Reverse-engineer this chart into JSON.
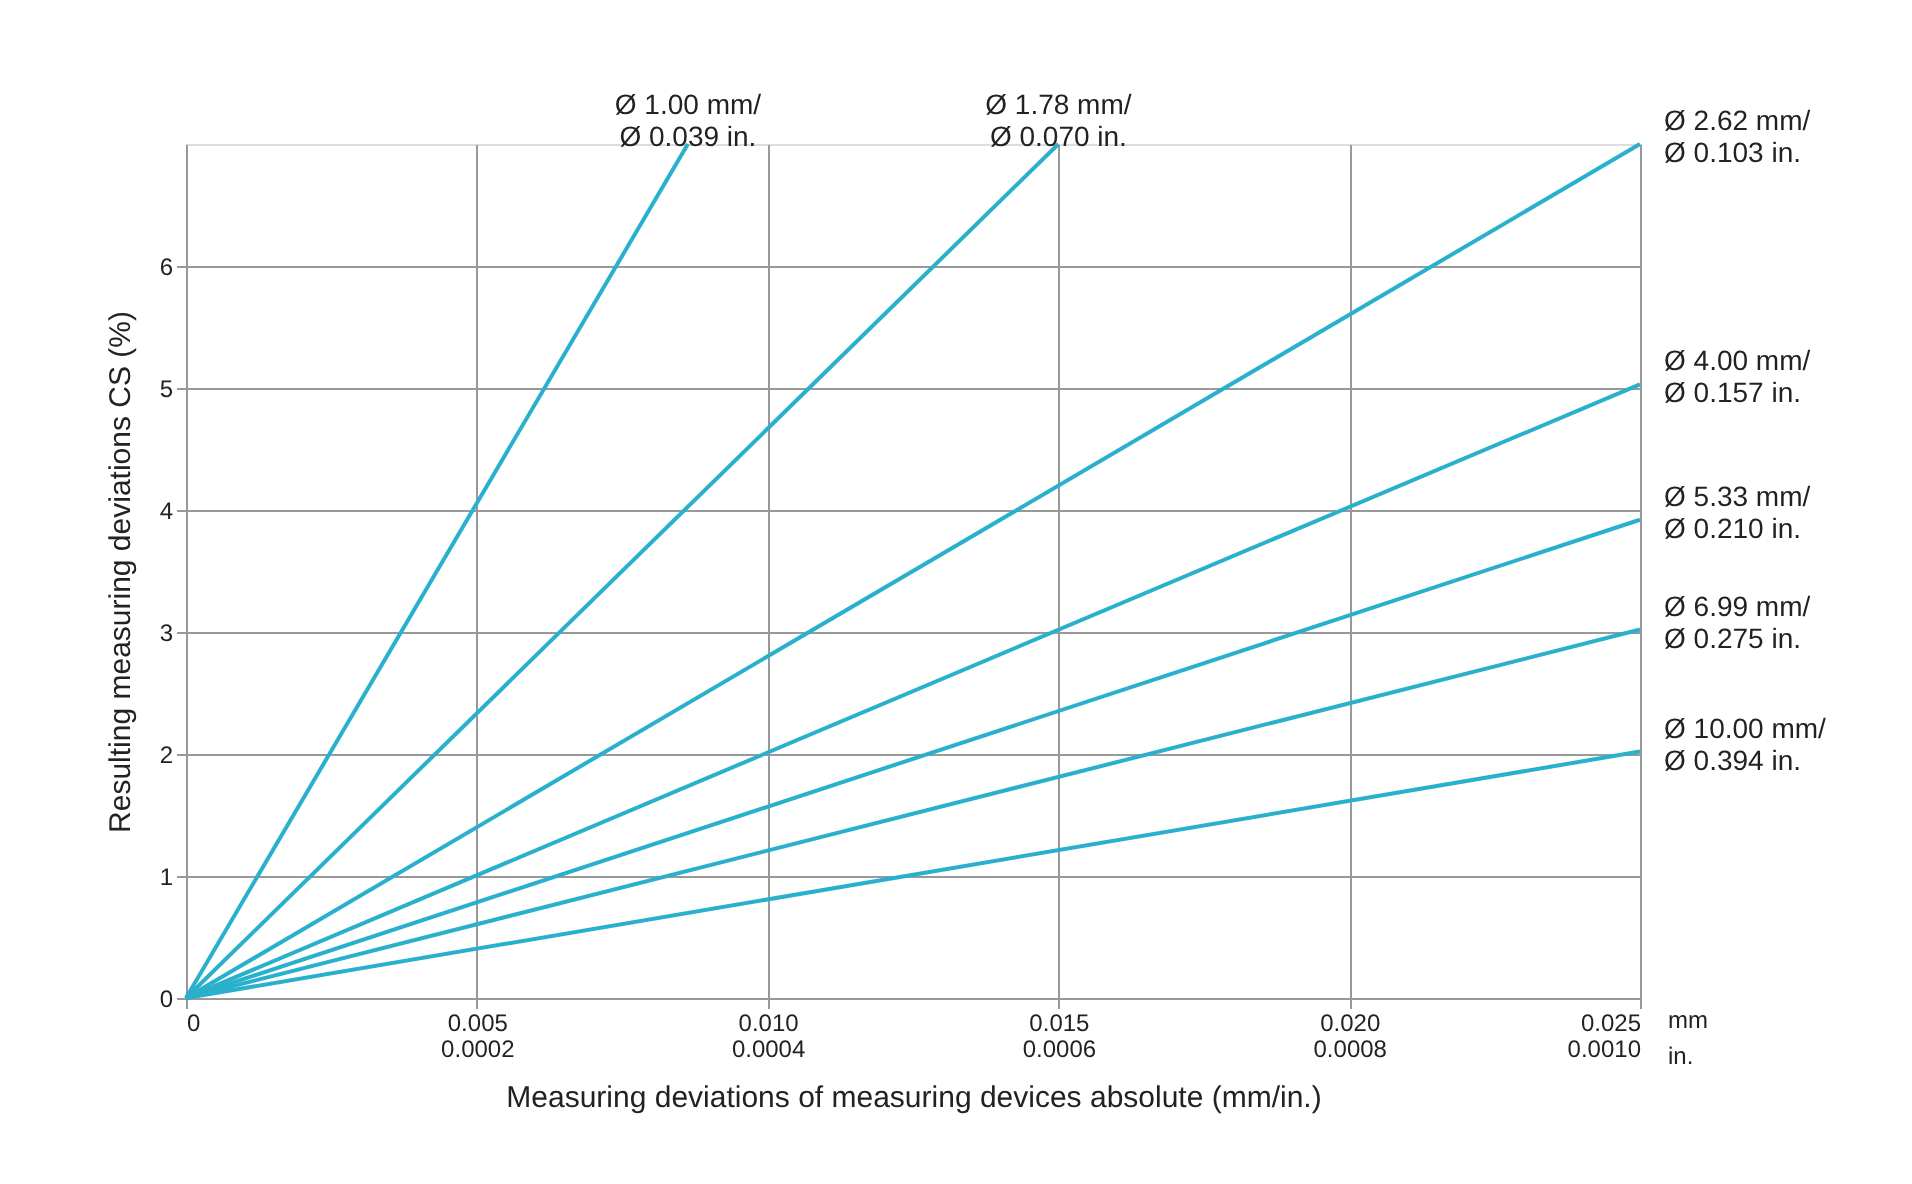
{
  "chart_data": {
    "type": "line",
    "xlabel": "Measuring deviations of measuring devices absolute (mm/in.)",
    "ylabel": "Resulting measuring deviations CS (%)",
    "xlim": [
      0,
      0.025
    ],
    "ylim": [
      0,
      7
    ],
    "xticks": [
      0,
      0.005,
      {
        "value": 0.01,
        "label": "0.010"
      },
      0.015,
      {
        "value": 0.02,
        "label": "0.020"
      },
      0.025
    ],
    "x2lim": [
      0,
      0.001
    ],
    "x2ticks": [
      0.0002,
      0.0004,
      0.0006,
      0.0008,
      {
        "value": 0.001,
        "label": "0.0010"
      }
    ],
    "yticks": [
      0,
      1,
      2,
      3,
      4,
      5,
      6
    ],
    "grid": true,
    "marker": "none",
    "line_style": "solid",
    "annotations": [
      "mm",
      "in."
    ],
    "series": [
      {
        "name": "Ø 1.00 mm/\nØ 0.039 in.",
        "color": "#29b0cc",
        "x": [
          0,
          0.00863
        ],
        "values": [
          0,
          7
        ]
      },
      {
        "name": "Ø 1.78 mm/\nØ 0.070 in.",
        "color": "#29b0cc",
        "x": [
          0,
          0.015
        ],
        "values": [
          0,
          7
        ]
      },
      {
        "name": "Ø 2.62 mm/\nØ 0.103 in.",
        "color": "#29b0cc",
        "x": [
          0,
          0.025
        ],
        "values": [
          0,
          7
        ]
      },
      {
        "name": "Ø 4.00 mm/\nØ 0.157 in.",
        "color": "#29b0cc",
        "x": [
          0,
          0.025
        ],
        "values": [
          0,
          5.03
        ]
      },
      {
        "name": "Ø 5.33 mm/\nØ 0.210 in.",
        "color": "#29b0cc",
        "x": [
          0,
          0.025
        ],
        "values": [
          0,
          3.92
        ]
      },
      {
        "name": "Ø 6.99 mm/\nØ 0.275 in.",
        "color": "#29b0cc",
        "x": [
          0,
          0.025
        ],
        "values": [
          0,
          3.02
        ]
      },
      {
        "name": "Ø 10.00 mm/\nØ 0.394 in.",
        "color": "#29b0cc",
        "x": [
          0,
          0.025
        ],
        "values": [
          0,
          2.02
        ]
      }
    ]
  }
}
